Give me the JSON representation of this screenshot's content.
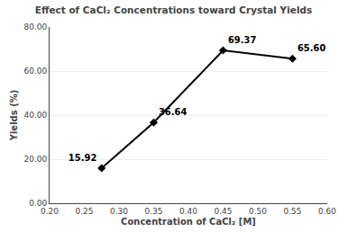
{
  "chart_data": {
    "type": "line",
    "title": "Effect of CaCl₂ Concentrations toward Crystal Yields",
    "x_label": "Concentration of CaCl₂ [M]",
    "y_label": "Yields (%)",
    "x": [
      0.275,
      0.35,
      0.45,
      0.55
    ],
    "values": [
      15.92,
      36.64,
      69.37,
      65.6
    ],
    "value_labels": [
      "15.92",
      "36.64",
      "69.37",
      "65.60"
    ],
    "data_labels": true,
    "color": "#000000",
    "marker": "diamond",
    "line_style": "solid",
    "xlim": [
      0.2,
      0.6
    ],
    "ylim": [
      0.0,
      80.0
    ],
    "xticks": [
      {
        "value": 0.2,
        "label": "0.20"
      },
      0.25,
      {
        "value": 0.3,
        "label": "0.30"
      },
      0.35,
      {
        "value": 0.4,
        "label": "0.40"
      },
      0.45,
      {
        "value": 0.5,
        "label": "0.50"
      },
      0.55,
      {
        "value": 0.6,
        "label": "0.60"
      }
    ],
    "yticks": [
      {
        "value": 0,
        "label": "0.00"
      },
      {
        "value": 20,
        "label": "20.00"
      },
      {
        "value": 40,
        "label": "40.00"
      },
      {
        "value": 60,
        "label": "60.00"
      },
      {
        "value": 80,
        "label": "80.00"
      }
    ],
    "grid": "y"
  }
}
